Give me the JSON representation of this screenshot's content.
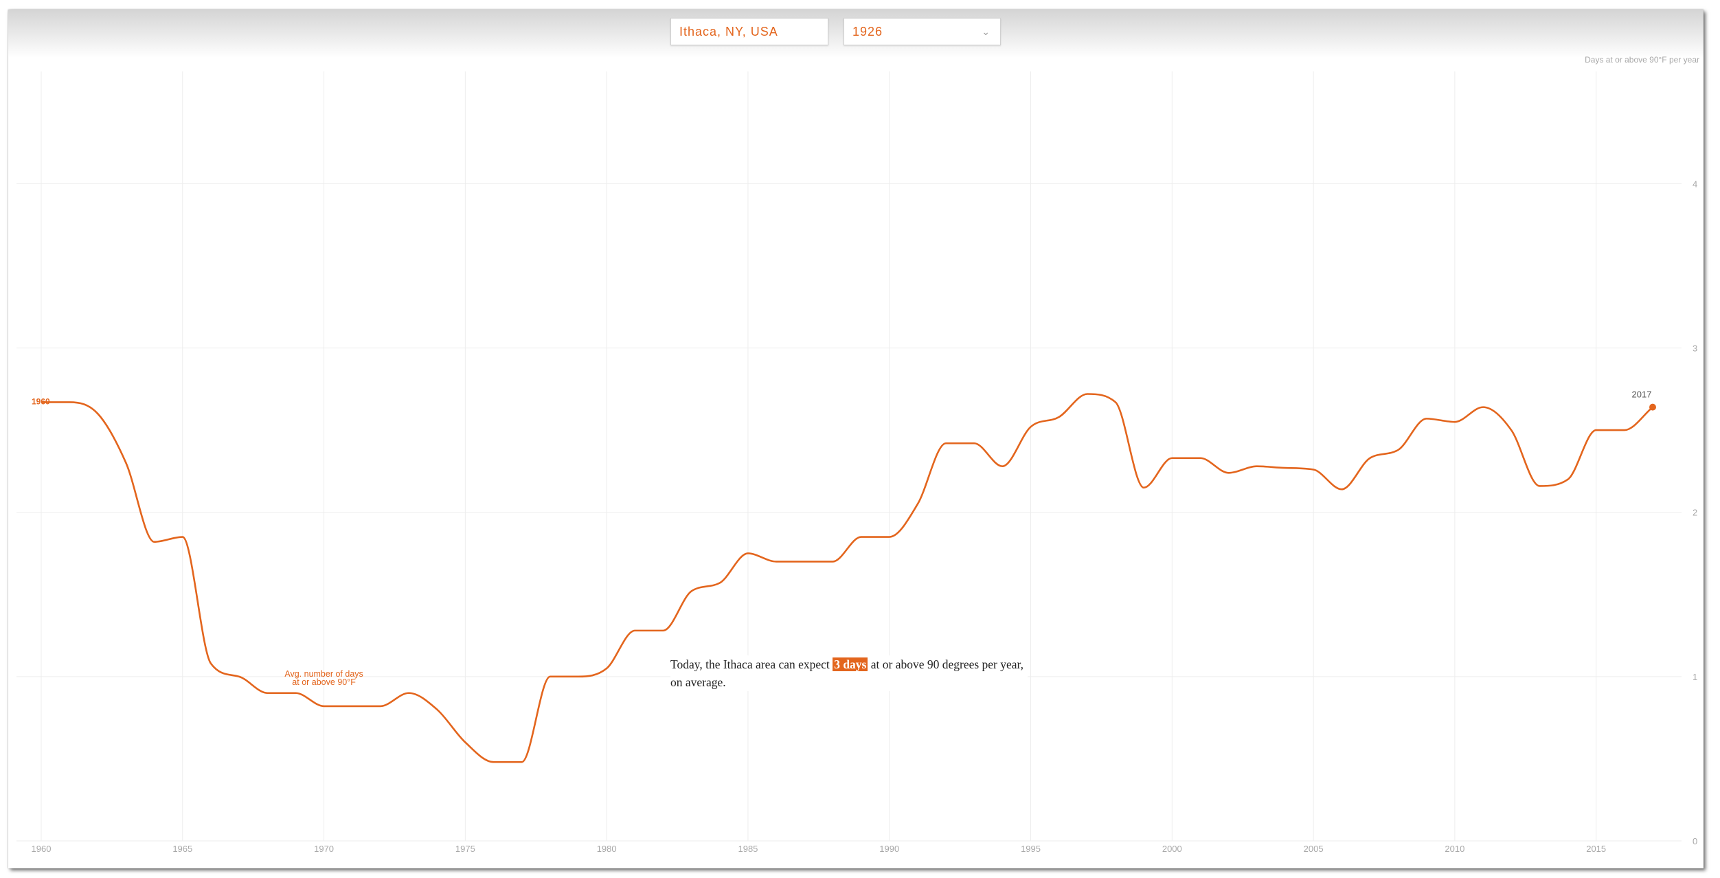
{
  "controls": {
    "location": "Ithaca, NY, USA",
    "year": "1926"
  },
  "unit_label": "Days at or above 90°F per year",
  "annotation": {
    "line1": "Avg. number of days",
    "line2": "at or above 90°F"
  },
  "summary": {
    "before": "Today, the Ithaca area can expect ",
    "highlight": "3 days",
    "after": " at or above 90 degrees per year, on average."
  },
  "colors": {
    "accent": "#e3651d",
    "grid": "#ededed",
    "tick": "#a8a8a8"
  },
  "chart_data": {
    "type": "line",
    "x_ticks": [
      1960,
      1965,
      1970,
      1975,
      1980,
      1985,
      1990,
      1995,
      2000,
      2005,
      2010,
      2015
    ],
    "y_ticks": [
      0,
      1,
      2,
      3,
      4
    ],
    "xlim": [
      1959.9,
      2017.4
    ],
    "ylim": [
      0,
      4.75
    ],
    "grid": true,
    "start_label": "1960",
    "end_label": "2017",
    "series": [
      {
        "x": [
          1960,
          1961,
          1962,
          1963,
          1964,
          1965,
          1966,
          1967,
          1968,
          1969,
          1970,
          1971,
          1972,
          1973,
          1974,
          1975,
          1976,
          1977,
          1978,
          1979,
          1980,
          1981,
          1982,
          1983,
          1984,
          1985,
          1986,
          1987,
          1988,
          1989,
          1990,
          1991,
          1992,
          1993,
          1994,
          1995,
          1996,
          1997,
          1998,
          1999,
          2000,
          2001,
          2002,
          2003,
          2004,
          2005,
          2006,
          2007,
          2008,
          2009,
          2010,
          2011,
          2012,
          2013,
          2014,
          2015,
          2016,
          2017
        ],
        "values": [
          2.67,
          2.67,
          2.6,
          2.3,
          1.82,
          1.85,
          1.08,
          1.0,
          0.9,
          0.9,
          0.82,
          0.82,
          0.82,
          0.9,
          0.8,
          0.6,
          0.48,
          0.48,
          1.0,
          1.0,
          1.05,
          1.28,
          1.28,
          1.52,
          1.57,
          1.75,
          1.7,
          1.7,
          1.7,
          1.85,
          1.85,
          2.05,
          2.42,
          2.42,
          2.28,
          2.52,
          2.58,
          2.72,
          2.67,
          2.15,
          2.33,
          2.33,
          2.24,
          2.28,
          2.27,
          2.26,
          2.14,
          2.33,
          2.38,
          2.57,
          2.55,
          2.64,
          2.5,
          2.16,
          2.2,
          2.5,
          2.5,
          2.64
        ]
      }
    ]
  }
}
